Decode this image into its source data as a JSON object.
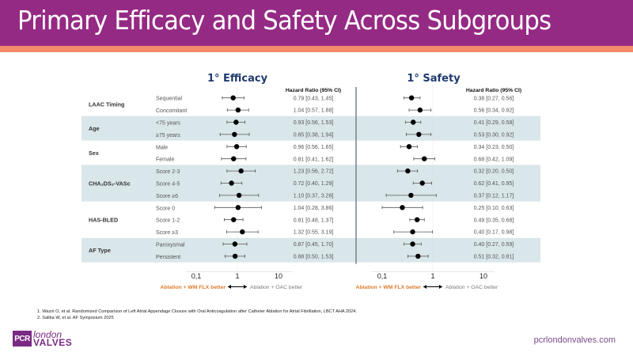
{
  "header": {
    "title": "Primary Efficacy and Safety Across Subgroups",
    "colors": {
      "title_bg": "#952a84",
      "accent": "#f58a6a"
    }
  },
  "chart_data": {
    "type": "forest",
    "x_scale": "log",
    "xlim": [
      0.1,
      10
    ],
    "x_ticks": [
      {
        "value": 0.1,
        "label": "0,1"
      },
      {
        "value": 1,
        "label": "1"
      },
      {
        "value": 10,
        "label": "10"
      }
    ],
    "column_header": "Hazard Ratio (95% CI)",
    "favor_left": "Ablation + WM FLX  better",
    "favor_right": "Ablation + OAC better",
    "colors": {
      "favor_left": "#e07b2a",
      "favor_right": "#7a7a7a",
      "band": "#d9e6ea",
      "panel_title": "#1f3a6e"
    },
    "groups": [
      {
        "name": "LAAC Timing",
        "shaded": false,
        "rows": [
          "Sequential",
          "Concomitant"
        ]
      },
      {
        "name": "Age",
        "shaded": true,
        "rows": [
          "<75 years",
          "≥75 years"
        ]
      },
      {
        "name": "Sex",
        "shaded": false,
        "rows": [
          "Male",
          "Female"
        ]
      },
      {
        "name": "CHA₂DS₂-VASc",
        "shaded": true,
        "rows": [
          "Score 2-3",
          "Score 4-5",
          "Score ≥6"
        ]
      },
      {
        "name": "HAS-BLED",
        "shaded": false,
        "rows": [
          "Score 0",
          "Score 1-2",
          "Score ≥3"
        ]
      },
      {
        "name": "AF Type",
        "shaded": true,
        "rows": [
          "Paroxysmal",
          "Persistent"
        ]
      }
    ],
    "panels": [
      {
        "title": "1° Efficacy",
        "series": [
          {
            "hr": 0.79,
            "lo": 0.43,
            "hi": 1.45,
            "label": "0.79 [0.43, 1.45]"
          },
          {
            "hr": 1.04,
            "lo": 0.57,
            "hi": 1.88,
            "label": "1.04 [0.57, 1.88]"
          },
          {
            "hr": 0.93,
            "lo": 0.56,
            "hi": 1.53,
            "label": "0.93 [0.56, 1.53]"
          },
          {
            "hr": 0.85,
            "lo": 0.38,
            "hi": 1.94,
            "label": "0.85 [0.38, 1.94]"
          },
          {
            "hr": 0.96,
            "lo": 0.56,
            "hi": 1.65,
            "label": "0.96 [0.56, 1.65]"
          },
          {
            "hr": 0.81,
            "lo": 0.41,
            "hi": 1.62,
            "label": "0.81 [0.41, 1.62]"
          },
          {
            "hr": 1.23,
            "lo": 0.56,
            "hi": 2.72,
            "label": "1.23 [0.56, 2.72]"
          },
          {
            "hr": 0.72,
            "lo": 0.4,
            "hi": 1.29,
            "label": "0.72 [0.40, 1.29]"
          },
          {
            "hr": 1.1,
            "lo": 0.37,
            "hi": 3.28,
            "label": "1.10 [0.37, 3.28]"
          },
          {
            "hr": 1.04,
            "lo": 0.28,
            "hi": 3.86,
            "label": "1.04 [0.28, 3.86]"
          },
          {
            "hr": 0.81,
            "lo": 0.48,
            "hi": 1.37,
            "label": "0.81 [0.48, 1.37]"
          },
          {
            "hr": 1.32,
            "lo": 0.55,
            "hi": 3.19,
            "label": "1.32 [0.55, 3.19]"
          },
          {
            "hr": 0.87,
            "lo": 0.45,
            "hi": 1.7,
            "label": "0.87 [0.45, 1.70]"
          },
          {
            "hr": 0.88,
            "lo": 0.5,
            "hi": 1.53,
            "label": "0.88 [0.50, 1.53]"
          }
        ]
      },
      {
        "title": "1° Safety",
        "series": [
          {
            "hr": 0.38,
            "lo": 0.27,
            "hi": 0.56,
            "label": "0.38 [0.27, 0.56]"
          },
          {
            "hr": 0.56,
            "lo": 0.34,
            "hi": 0.92,
            "label": "0.56 [0.34, 0.92]"
          },
          {
            "hr": 0.41,
            "lo": 0.29,
            "hi": 0.58,
            "label": "0.41 [0.29, 0.58]"
          },
          {
            "hr": 0.53,
            "lo": 0.3,
            "hi": 0.92,
            "label": "0.53 [0.30, 0.92]"
          },
          {
            "hr": 0.34,
            "lo": 0.23,
            "hi": 0.5,
            "label": "0.34 [0.23, 0.50]"
          },
          {
            "hr": 0.68,
            "lo": 0.42,
            "hi": 1.09,
            "label": "0.68 [0.42, 1.09]"
          },
          {
            "hr": 0.32,
            "lo": 0.2,
            "hi": 0.5,
            "label": "0.32 [0.20, 0.50]"
          },
          {
            "hr": 0.62,
            "lo": 0.41,
            "hi": 0.95,
            "label": "0.62 [0.41, 0.95]"
          },
          {
            "hr": 0.37,
            "lo": 0.12,
            "hi": 1.17,
            "label": "0.37 [0.12, 1.17]"
          },
          {
            "hr": 0.25,
            "lo": 0.1,
            "hi": 0.63,
            "label": "0.25 [0.10, 0.63]"
          },
          {
            "hr": 0.49,
            "lo": 0.35,
            "hi": 0.68,
            "label": "0.49 [0.35, 0.68]"
          },
          {
            "hr": 0.4,
            "lo": 0.17,
            "hi": 0.98,
            "label": "0.40 [0.17, 0.98]"
          },
          {
            "hr": 0.4,
            "lo": 0.27,
            "hi": 0.59,
            "label": "0.40 [0.27, 0.59]"
          },
          {
            "hr": 0.51,
            "lo": 0.32,
            "hi": 0.81,
            "label": "0.51 [0.32, 0.81]"
          }
        ]
      }
    ]
  },
  "references": [
    "1. Wazni O, et al. Randomized Comparison of Left Atrial Appendage Closure with Oral Anticoagulation after Catheter Ablation for Atrial Fibrillation, LBCT AHA 2024.",
    "2. Saliba W, et al. AF Symposium 2025"
  ],
  "footer": {
    "logo_box": "PCR",
    "logo_line1": "london",
    "logo_line2": "VALVES",
    "website": "pcrlondonvalves.com"
  }
}
